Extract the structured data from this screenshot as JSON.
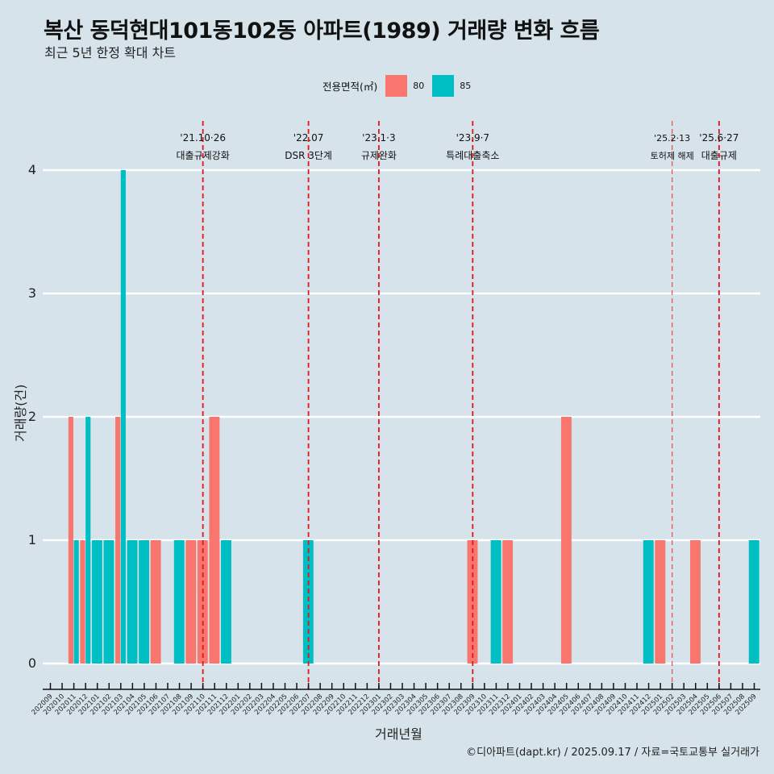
{
  "title": "복산 동덕현대101동102동 아파트(1989) 거래량 변화 흐름",
  "subtitle": "최근 5년 한정 확대 차트",
  "caption": "©디아파트(dapt.kr) / 2025.09.17 / 자료=국토교통부 실거래가",
  "legend": {
    "title": "전용면적(㎡)",
    "items": [
      {
        "label": "80",
        "color": "#f8766d"
      },
      {
        "label": "85",
        "color": "#00bfc4"
      }
    ]
  },
  "chart_data": {
    "type": "bar",
    "title": "복산 동덕현대101동102동 아파트(1989) 거래량 변화 흐름",
    "xlabel": "거래년월",
    "ylabel": "거래량(건)",
    "ylim": [
      0,
      4
    ],
    "yticks": [
      0,
      1,
      2,
      3,
      4
    ],
    "grid": true,
    "legend_position": "top",
    "categories": [
      "202009",
      "202010",
      "202011",
      "202012",
      "202101",
      "202102",
      "202103",
      "202104",
      "202105",
      "202106",
      "202107",
      "202108",
      "202109",
      "202110",
      "202111",
      "202112",
      "202201",
      "202202",
      "202203",
      "202204",
      "202205",
      "202206",
      "202207",
      "202208",
      "202209",
      "202210",
      "202211",
      "202212",
      "202301",
      "202302",
      "202303",
      "202304",
      "202305",
      "202306",
      "202307",
      "202308",
      "202309",
      "202310",
      "202311",
      "202312",
      "202401",
      "202402",
      "202403",
      "202404",
      "202405",
      "202406",
      "202407",
      "202408",
      "202409",
      "202410",
      "202411",
      "202412",
      "202501",
      "202502",
      "202503",
      "202504",
      "202505",
      "202506",
      "202507",
      "202508",
      "202509"
    ],
    "series": [
      {
        "name": "80",
        "color": "#f8766d",
        "points": [
          {
            "x": "202011",
            "y": 2
          },
          {
            "x": "202012",
            "y": 1
          },
          {
            "x": "202103",
            "y": 2
          },
          {
            "x": "202106",
            "y": 1
          },
          {
            "x": "202109",
            "y": 1
          },
          {
            "x": "202110",
            "y": 1
          },
          {
            "x": "202111",
            "y": 2
          },
          {
            "x": "202309",
            "y": 1
          },
          {
            "x": "202312",
            "y": 1
          },
          {
            "x": "202405",
            "y": 2
          },
          {
            "x": "202501",
            "y": 1
          },
          {
            "x": "202504",
            "y": 1
          }
        ]
      },
      {
        "name": "85",
        "color": "#00bfc4",
        "points": [
          {
            "x": "202011",
            "y": 1
          },
          {
            "x": "202012",
            "y": 2
          },
          {
            "x": "202101",
            "y": 1
          },
          {
            "x": "202102",
            "y": 1
          },
          {
            "x": "202103",
            "y": 4
          },
          {
            "x": "202104",
            "y": 1
          },
          {
            "x": "202105",
            "y": 1
          },
          {
            "x": "202108",
            "y": 1
          },
          {
            "x": "202112",
            "y": 1
          },
          {
            "x": "202207",
            "y": 1
          },
          {
            "x": "202311",
            "y": 1
          },
          {
            "x": "202412",
            "y": 1
          },
          {
            "x": "202509",
            "y": 1
          }
        ]
      }
    ],
    "annotations": [
      {
        "x": "202110",
        "date": "'21.10·26",
        "label": "대출규제강화",
        "style": "bold"
      },
      {
        "x": "202207",
        "date": "'22.07",
        "label": "DSR 3단계",
        "style": "bold"
      },
      {
        "x": "202301",
        "date": "'23.1·3",
        "label": "규제완화",
        "style": "bold"
      },
      {
        "x": "202309",
        "date": "'23.9·7",
        "label": "특례대출축소",
        "style": "bold"
      },
      {
        "x": "202502",
        "date": "'25.2·13",
        "label": "토허제 해제",
        "style": "light"
      },
      {
        "x": "202506",
        "date": "'25.6·27",
        "label": "대출규제",
        "style": "bold"
      }
    ]
  }
}
